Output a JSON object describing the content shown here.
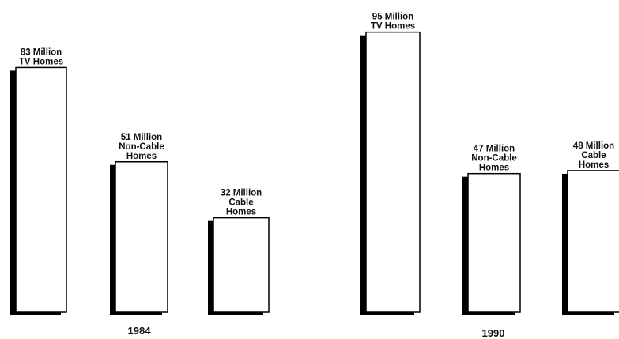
{
  "chart_data": {
    "type": "bar",
    "panels": [
      {
        "year": "1984",
        "bars": [
          {
            "category": "TV Homes",
            "value": 83,
            "label": [
              "83 Million",
              "TV Homes"
            ]
          },
          {
            "category": "Non-Cable Homes",
            "value": 51,
            "label": [
              "51 Million",
              "Non-Cable",
              "Homes"
            ]
          },
          {
            "category": "Cable Homes",
            "value": 32,
            "label": [
              "32 Million",
              "Cable",
              "Homes"
            ]
          }
        ]
      },
      {
        "year": "1990",
        "bars": [
          {
            "category": "TV Homes",
            "value": 95,
            "label": [
              "95 Million",
              "TV Homes"
            ]
          },
          {
            "category": "Non-Cable Homes",
            "value": 47,
            "label": [
              "47 Million",
              "Non-Cable",
              "Homes"
            ]
          },
          {
            "category": "Cable Homes",
            "value": 48,
            "label": [
              "48 Million",
              "Cable",
              "Homes"
            ]
          }
        ]
      }
    ],
    "unit": "Million",
    "colors": {
      "bar_fill": "#ffffff",
      "bar_outline": "#000000",
      "bar_shadow": "#000000",
      "text": "#111111"
    }
  }
}
